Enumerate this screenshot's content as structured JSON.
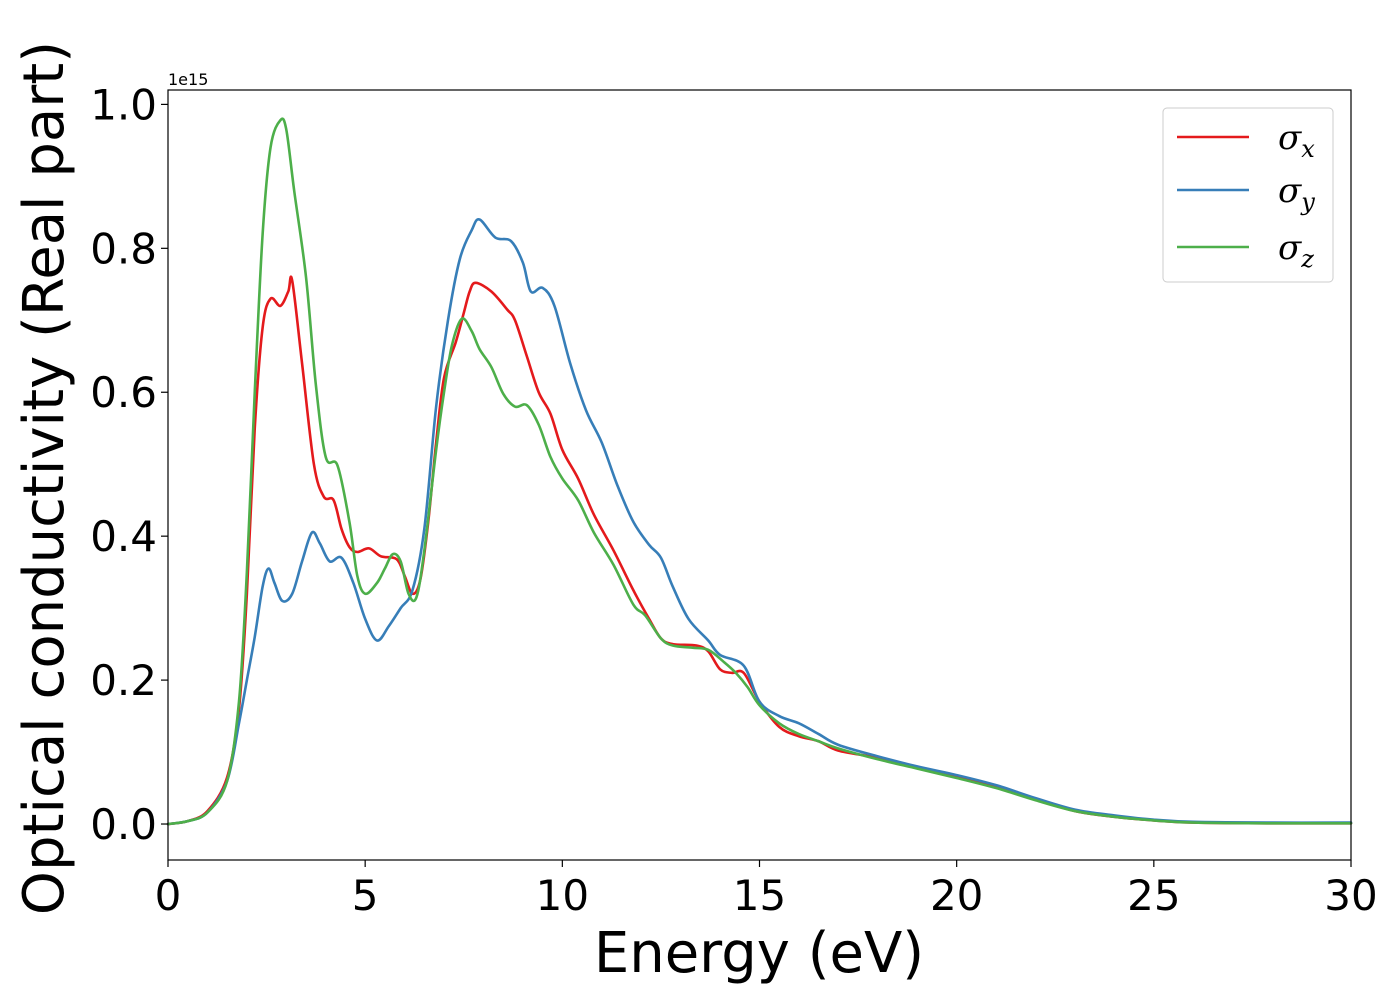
{
  "chart_data": {
    "type": "line",
    "xlabel": "Energy (eV)",
    "ylabel": "Optical conductivity (Real part)",
    "y_offset_label": "1e15",
    "xlim": [
      0,
      30
    ],
    "ylim": [
      -0.05,
      1.02
    ],
    "x_ticks": [
      0,
      5,
      10,
      15,
      20,
      25,
      30
    ],
    "x_tick_labels": [
      "0",
      "5",
      "10",
      "15",
      "20",
      "25",
      "30"
    ],
    "y_ticks": [
      0.0,
      0.2,
      0.4,
      0.6,
      0.8,
      1.0
    ],
    "y_tick_labels": [
      "0.0",
      "0.2",
      "0.4",
      "0.6",
      "0.8",
      "1.0"
    ],
    "grid": false,
    "legend_position": "top-right",
    "series": [
      {
        "name": "σ",
        "subscript": "x",
        "color": "#e41a1c",
        "points": [
          [
            0,
            0
          ],
          [
            0.5,
            0.004
          ],
          [
            1.0,
            0.018
          ],
          [
            1.5,
            0.065
          ],
          [
            1.8,
            0.16
          ],
          [
            2.0,
            0.32
          ],
          [
            2.2,
            0.55
          ],
          [
            2.4,
            0.69
          ],
          [
            2.6,
            0.73
          ],
          [
            2.85,
            0.72
          ],
          [
            3.05,
            0.74
          ],
          [
            3.15,
            0.755
          ],
          [
            3.4,
            0.64
          ],
          [
            3.7,
            0.5
          ],
          [
            3.95,
            0.455
          ],
          [
            4.2,
            0.45
          ],
          [
            4.4,
            0.41
          ],
          [
            4.6,
            0.385
          ],
          [
            4.8,
            0.378
          ],
          [
            5.1,
            0.383
          ],
          [
            5.4,
            0.372
          ],
          [
            5.8,
            0.368
          ],
          [
            6.0,
            0.345
          ],
          [
            6.2,
            0.32
          ],
          [
            6.4,
            0.34
          ],
          [
            6.6,
            0.42
          ],
          [
            6.8,
            0.53
          ],
          [
            7.0,
            0.62
          ],
          [
            7.3,
            0.67
          ],
          [
            7.5,
            0.71
          ],
          [
            7.65,
            0.74
          ],
          [
            7.8,
            0.752
          ],
          [
            8.2,
            0.74
          ],
          [
            8.6,
            0.715
          ],
          [
            8.8,
            0.7
          ],
          [
            9.1,
            0.65
          ],
          [
            9.4,
            0.6
          ],
          [
            9.7,
            0.57
          ],
          [
            10.0,
            0.52
          ],
          [
            10.4,
            0.48
          ],
          [
            10.8,
            0.43
          ],
          [
            11.3,
            0.38
          ],
          [
            11.8,
            0.325
          ],
          [
            12.2,
            0.285
          ],
          [
            12.5,
            0.258
          ],
          [
            12.8,
            0.25
          ],
          [
            13.4,
            0.248
          ],
          [
            13.7,
            0.24
          ],
          [
            14.0,
            0.215
          ],
          [
            14.3,
            0.21
          ],
          [
            14.6,
            0.21
          ],
          [
            15.0,
            0.17
          ],
          [
            15.5,
            0.135
          ],
          [
            16.0,
            0.122
          ],
          [
            16.5,
            0.115
          ],
          [
            17.0,
            0.102
          ],
          [
            18.0,
            0.092
          ],
          [
            19.0,
            0.078
          ],
          [
            20.0,
            0.066
          ],
          [
            21.0,
            0.052
          ],
          [
            22.0,
            0.035
          ],
          [
            23.0,
            0.018
          ],
          [
            24.0,
            0.01
          ],
          [
            25.0,
            0.005
          ],
          [
            26.0,
            0.002
          ],
          [
            28.0,
            0.001
          ],
          [
            30.0,
            0.001
          ]
        ]
      },
      {
        "name": "σ",
        "subscript": "y",
        "color": "#377eb8",
        "points": [
          [
            0,
            0
          ],
          [
            0.5,
            0.004
          ],
          [
            1.0,
            0.016
          ],
          [
            1.5,
            0.06
          ],
          [
            1.8,
            0.14
          ],
          [
            2.0,
            0.2
          ],
          [
            2.2,
            0.26
          ],
          [
            2.4,
            0.33
          ],
          [
            2.55,
            0.355
          ],
          [
            2.7,
            0.335
          ],
          [
            2.9,
            0.31
          ],
          [
            3.15,
            0.32
          ],
          [
            3.4,
            0.365
          ],
          [
            3.65,
            0.405
          ],
          [
            3.85,
            0.39
          ],
          [
            4.1,
            0.365
          ],
          [
            4.4,
            0.37
          ],
          [
            4.7,
            0.335
          ],
          [
            5.0,
            0.285
          ],
          [
            5.3,
            0.255
          ],
          [
            5.6,
            0.275
          ],
          [
            5.9,
            0.3
          ],
          [
            6.2,
            0.325
          ],
          [
            6.5,
            0.41
          ],
          [
            6.8,
            0.58
          ],
          [
            7.1,
            0.7
          ],
          [
            7.4,
            0.785
          ],
          [
            7.7,
            0.825
          ],
          [
            7.9,
            0.84
          ],
          [
            8.3,
            0.815
          ],
          [
            8.7,
            0.81
          ],
          [
            9.0,
            0.78
          ],
          [
            9.2,
            0.74
          ],
          [
            9.5,
            0.745
          ],
          [
            9.8,
            0.72
          ],
          [
            10.2,
            0.64
          ],
          [
            10.6,
            0.575
          ],
          [
            11.0,
            0.53
          ],
          [
            11.4,
            0.47
          ],
          [
            11.8,
            0.42
          ],
          [
            12.2,
            0.388
          ],
          [
            12.5,
            0.37
          ],
          [
            12.8,
            0.33
          ],
          [
            13.2,
            0.285
          ],
          [
            13.7,
            0.255
          ],
          [
            14.0,
            0.235
          ],
          [
            14.6,
            0.22
          ],
          [
            15.0,
            0.17
          ],
          [
            15.5,
            0.15
          ],
          [
            16.0,
            0.14
          ],
          [
            16.5,
            0.125
          ],
          [
            17.0,
            0.11
          ],
          [
            18.0,
            0.094
          ],
          [
            19.0,
            0.08
          ],
          [
            20.0,
            0.068
          ],
          [
            21.0,
            0.054
          ],
          [
            22.0,
            0.036
          ],
          [
            23.0,
            0.02
          ],
          [
            24.0,
            0.012
          ],
          [
            25.0,
            0.006
          ],
          [
            26.0,
            0.003
          ],
          [
            28.0,
            0.002
          ],
          [
            30.0,
            0.002
          ]
        ]
      },
      {
        "name": "σ",
        "subscript": "z",
        "color": "#4daf4a",
        "points": [
          [
            0,
            0
          ],
          [
            0.5,
            0.004
          ],
          [
            1.0,
            0.016
          ],
          [
            1.5,
            0.06
          ],
          [
            1.8,
            0.17
          ],
          [
            2.0,
            0.35
          ],
          [
            2.2,
            0.6
          ],
          [
            2.4,
            0.82
          ],
          [
            2.6,
            0.94
          ],
          [
            2.85,
            0.978
          ],
          [
            3.0,
            0.965
          ],
          [
            3.2,
            0.88
          ],
          [
            3.5,
            0.76
          ],
          [
            3.75,
            0.61
          ],
          [
            4.0,
            0.51
          ],
          [
            4.3,
            0.498
          ],
          [
            4.6,
            0.42
          ],
          [
            4.8,
            0.345
          ],
          [
            5.0,
            0.32
          ],
          [
            5.3,
            0.335
          ],
          [
            5.5,
            0.355
          ],
          [
            5.7,
            0.375
          ],
          [
            5.9,
            0.365
          ],
          [
            6.1,
            0.32
          ],
          [
            6.3,
            0.315
          ],
          [
            6.5,
            0.38
          ],
          [
            6.8,
            0.52
          ],
          [
            7.0,
            0.6
          ],
          [
            7.2,
            0.665
          ],
          [
            7.45,
            0.702
          ],
          [
            7.7,
            0.685
          ],
          [
            7.9,
            0.66
          ],
          [
            8.2,
            0.635
          ],
          [
            8.5,
            0.598
          ],
          [
            8.8,
            0.58
          ],
          [
            9.1,
            0.582
          ],
          [
            9.4,
            0.555
          ],
          [
            9.7,
            0.51
          ],
          [
            10.0,
            0.48
          ],
          [
            10.4,
            0.45
          ],
          [
            10.8,
            0.405
          ],
          [
            11.3,
            0.36
          ],
          [
            11.8,
            0.305
          ],
          [
            12.1,
            0.29
          ],
          [
            12.5,
            0.258
          ],
          [
            12.8,
            0.248
          ],
          [
            13.3,
            0.245
          ],
          [
            13.7,
            0.242
          ],
          [
            14.1,
            0.225
          ],
          [
            14.4,
            0.21
          ],
          [
            14.7,
            0.19
          ],
          [
            15.0,
            0.165
          ],
          [
            15.5,
            0.14
          ],
          [
            16.0,
            0.125
          ],
          [
            16.5,
            0.115
          ],
          [
            17.0,
            0.105
          ],
          [
            18.0,
            0.09
          ],
          [
            19.0,
            0.077
          ],
          [
            20.0,
            0.064
          ],
          [
            21.0,
            0.05
          ],
          [
            22.0,
            0.033
          ],
          [
            23.0,
            0.018
          ],
          [
            24.0,
            0.01
          ],
          [
            25.0,
            0.005
          ],
          [
            26.0,
            0.002
          ],
          [
            28.0,
            0.001
          ],
          [
            30.0,
            0.001
          ]
        ]
      }
    ]
  }
}
